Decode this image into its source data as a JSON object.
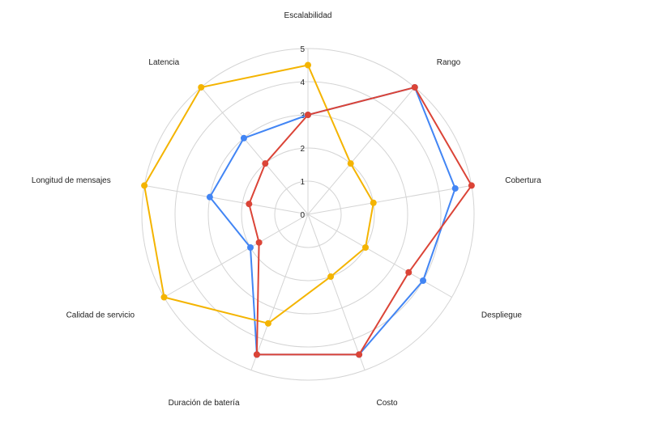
{
  "chart_data": {
    "type": "radar",
    "axes": [
      "Escalabilidad",
      "Rango",
      "Cobertura",
      "Despliegue",
      "Costo",
      "Duración de batería",
      "Calidad de servicio",
      "Longitud de mensajes",
      "Latencia"
    ],
    "r_ticks": [
      "0",
      "1",
      "2",
      "3",
      "4",
      "5"
    ],
    "r_range": [
      0,
      5
    ],
    "grid": true,
    "legend": "none",
    "series": [
      {
        "color": "#4285F4",
        "values": [
          3,
          5,
          4.5,
          4,
          4.5,
          4.5,
          2,
          3,
          3
        ]
      },
      {
        "color": "#F4B400",
        "values": [
          4.5,
          2,
          2,
          2,
          2,
          3.5,
          5,
          5,
          5
        ]
      },
      {
        "color": "#DB4437",
        "values": [
          3,
          5,
          5,
          3.5,
          4.5,
          4.5,
          1.7,
          1.8,
          2
        ]
      }
    ]
  }
}
